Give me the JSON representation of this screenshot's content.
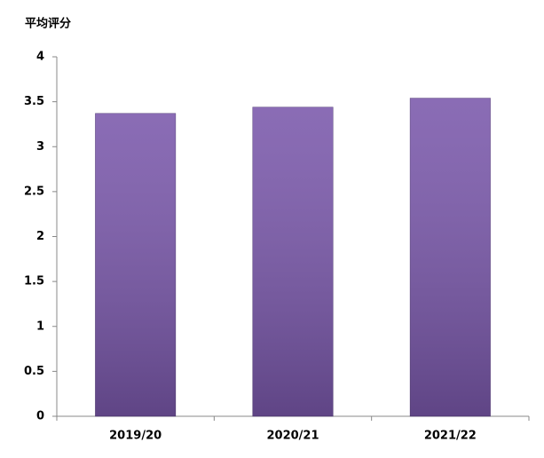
{
  "chart_data": {
    "type": "bar",
    "y_label": "平均评分",
    "categories": [
      "2019/20",
      "2020/21",
      "2021/22"
    ],
    "values": [
      3.37,
      3.44,
      3.54
    ],
    "color": "#7a58ab",
    "ylim": [
      0,
      4
    ],
    "yticks": [
      0,
      0.5,
      1,
      1.5,
      2,
      2.5,
      3,
      3.5,
      4
    ],
    "grid": false
  }
}
